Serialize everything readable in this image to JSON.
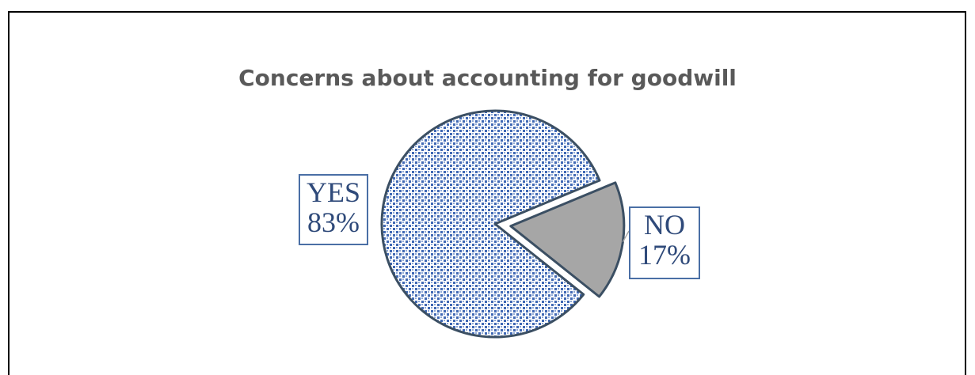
{
  "chart_data": {
    "type": "pie",
    "title": "Concerns about accounting for goodwill",
    "slices": [
      {
        "label": "YES",
        "value": 83,
        "value_label": "83%",
        "pattern": "blue-dots",
        "color": "#3f68b4",
        "exploded": false
      },
      {
        "label": "NO",
        "value": 17,
        "value_label": "17%",
        "pattern": "solid",
        "color": "#a6a6a6",
        "exploded": true
      }
    ],
    "outline_color": "#3b4f63",
    "label_text_color": "#2f4a7a",
    "label_border_color": "#4a6fa5"
  }
}
